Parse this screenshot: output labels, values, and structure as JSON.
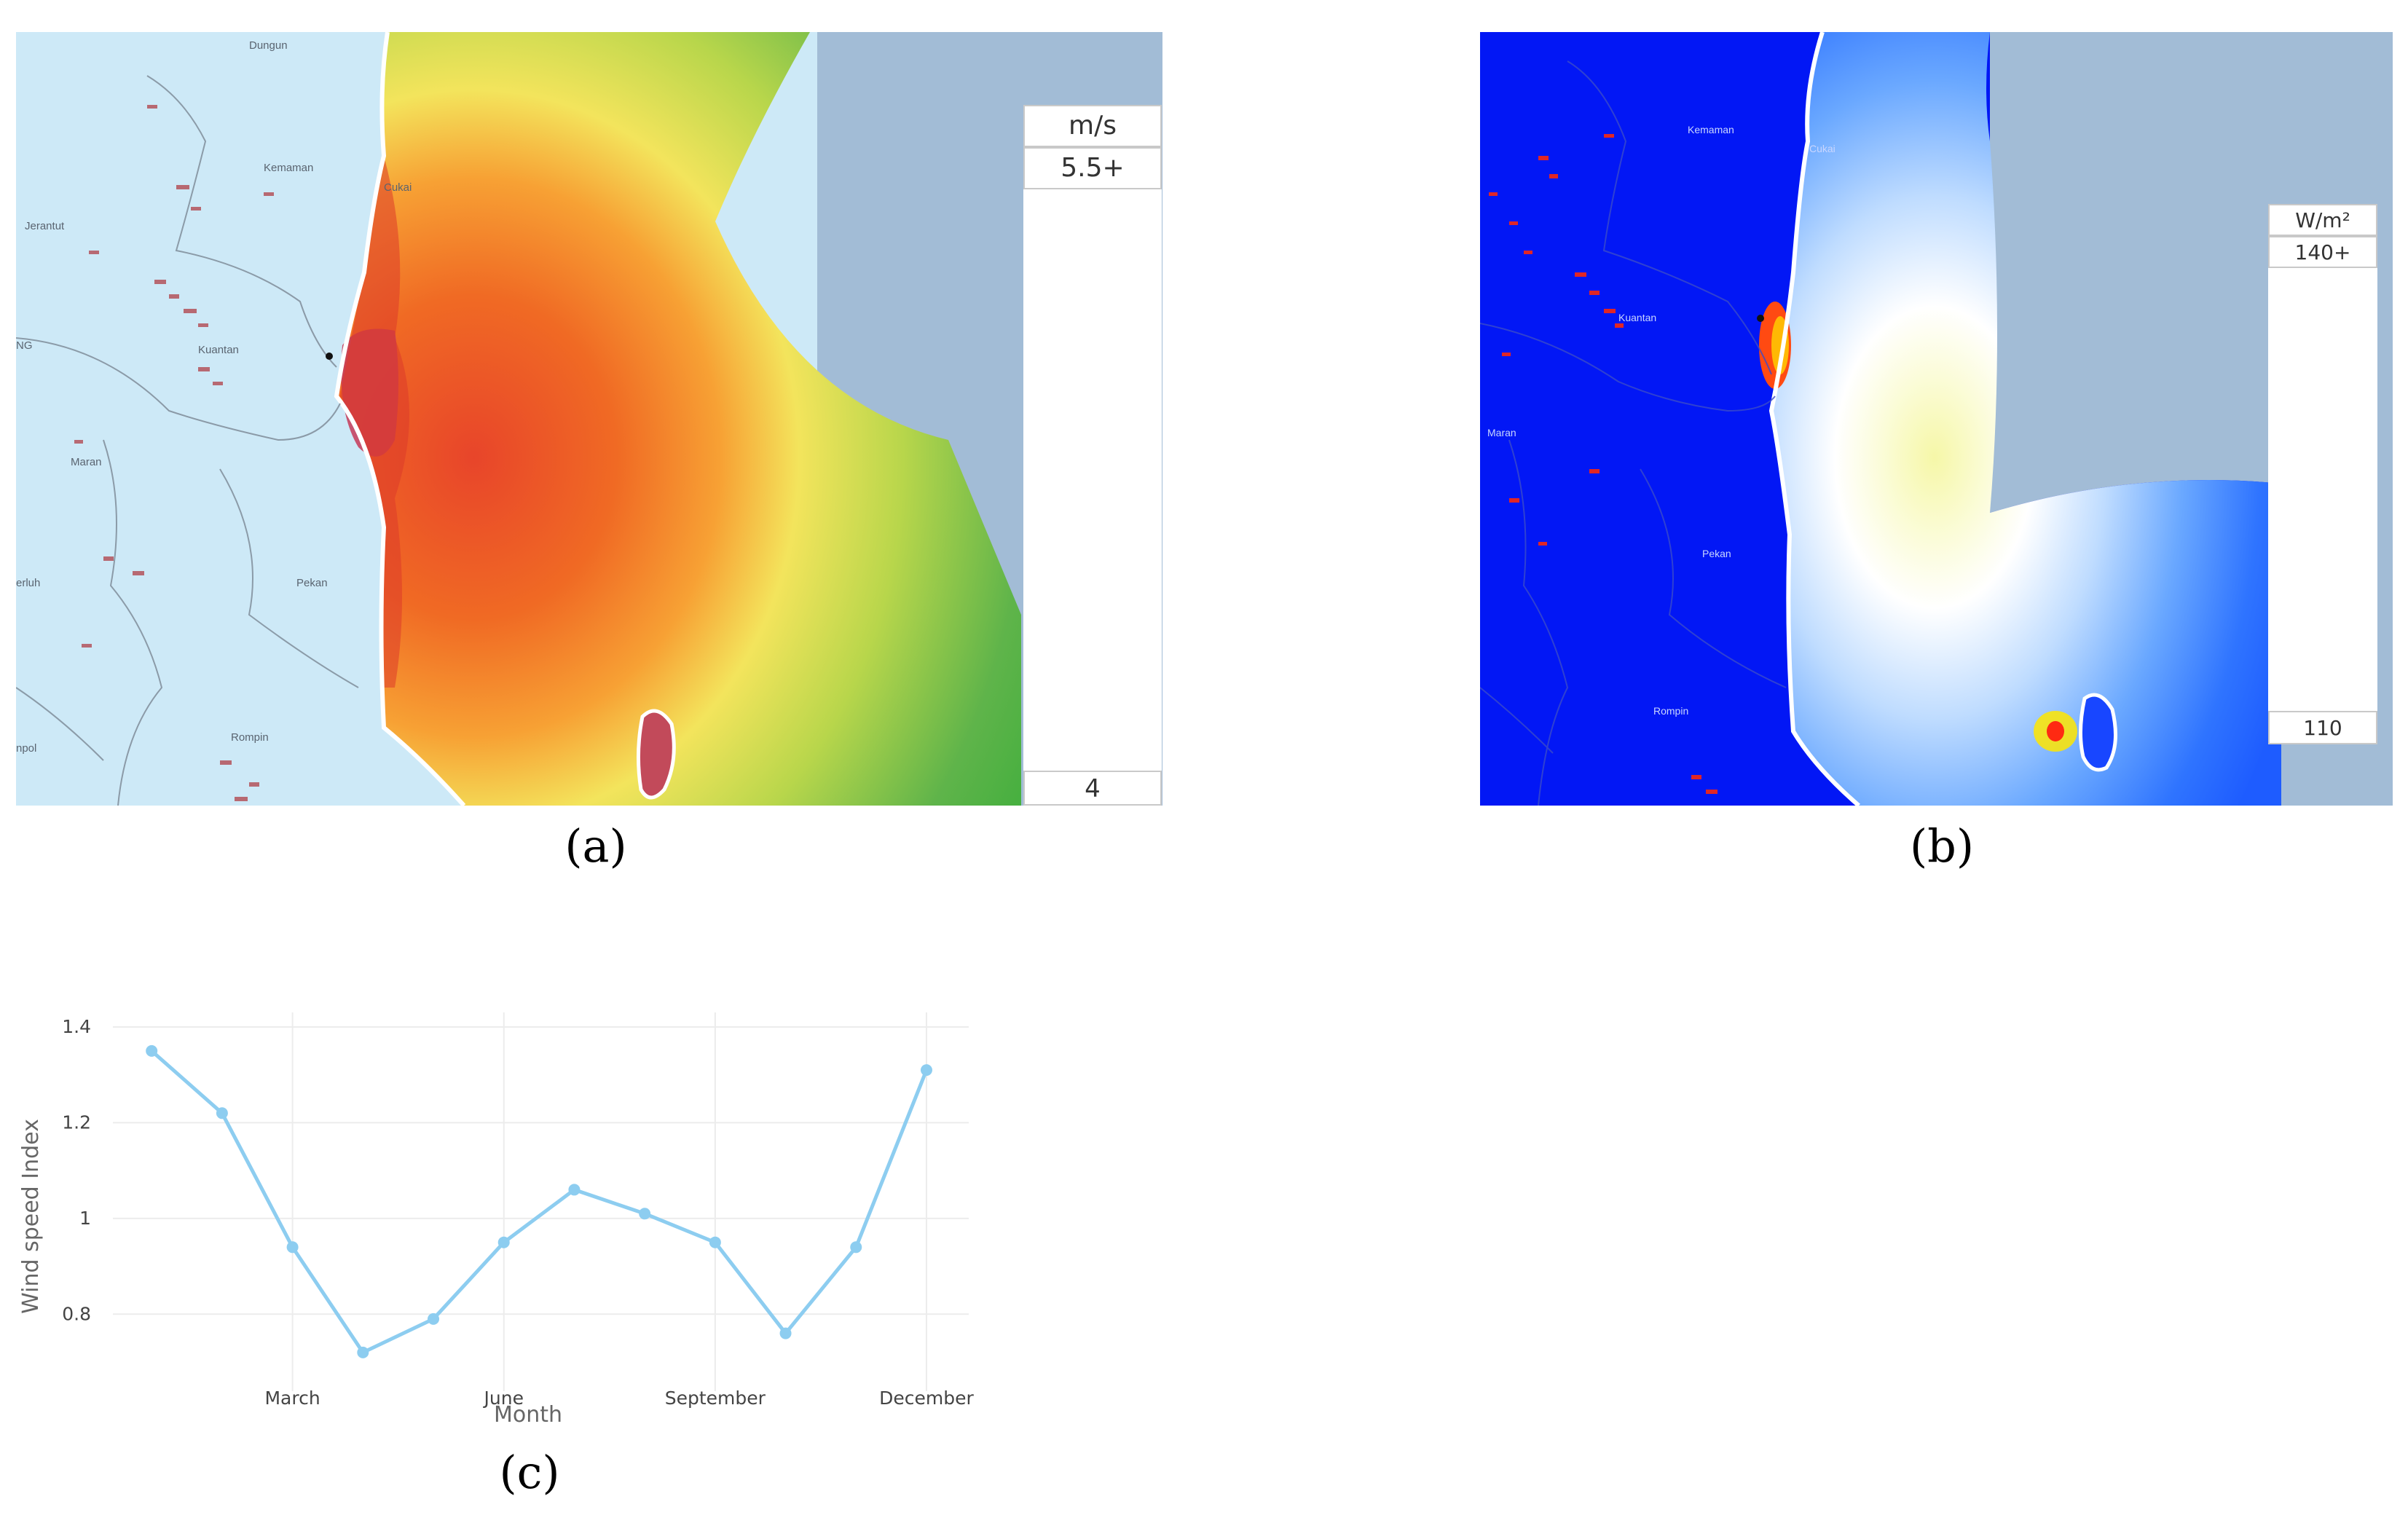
{
  "panel_a": {
    "caption": "(a)",
    "legend": {
      "unit": "m/s",
      "max_label": "5.5+",
      "min_label": "4"
    },
    "places": [
      "Dungun",
      "Kemaman",
      "Jerantut",
      "Cukai",
      "Kuantan",
      "NG",
      "Maran",
      "Pekan",
      "erluh",
      "Rompin",
      "npol"
    ],
    "colors": {
      "sea": "#a2bcd6",
      "land": "#cde9f7",
      "ramp": [
        "#b83a6b",
        "#d9252b",
        "#f06a24",
        "#f7a134",
        "#f3e45c",
        "#b8d64b",
        "#3fae3c",
        "#4f9e8c",
        "#4a84c6",
        "#8cc0e8",
        "#dff0fa"
      ]
    }
  },
  "panel_b": {
    "caption": "(b)",
    "legend": {
      "unit": "W/m²",
      "max_label": "140+",
      "min_label": "110"
    },
    "places": [
      "Kemaman",
      "Cukai",
      "Kuantan",
      "Maran",
      "Pekan",
      "Rompin"
    ],
    "colors": {
      "sea": "#a2bcd6",
      "land": "#0217f5",
      "ramp": [
        "#ff1e12",
        "#ff8a10",
        "#ffe600",
        "#ffffa0",
        "#ffffff",
        "#9fc9ff",
        "#3d86ff",
        "#0a3cff",
        "#0213f0"
      ]
    }
  },
  "panel_c": {
    "caption": "(c)"
  },
  "chart_data": {
    "type": "line",
    "xlabel": "Month",
    "ylabel": "Wind speed Index",
    "x": [
      1,
      2,
      3,
      4,
      5,
      6,
      7,
      8,
      9,
      10,
      11,
      12
    ],
    "xticks": [
      {
        "x": 3,
        "label": "March"
      },
      {
        "x": 6,
        "label": "June"
      },
      {
        "x": 9,
        "label": "September"
      },
      {
        "x": 12,
        "label": "December"
      }
    ],
    "yticks": [
      0.8,
      1,
      1.2,
      1.4
    ],
    "ylim": [
      0.7,
      1.4
    ],
    "grid": true,
    "series": [
      {
        "values": [
          1.35,
          1.22,
          0.94,
          0.72,
          0.79,
          0.95,
          1.06,
          1.01,
          0.95,
          0.76,
          0.94,
          1.31
        ],
        "color": "#8dcdf0"
      }
    ]
  }
}
